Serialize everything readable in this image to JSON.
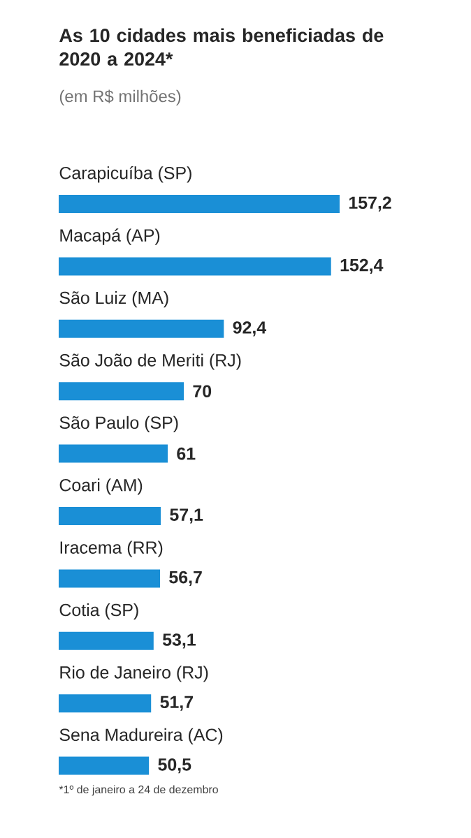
{
  "chart_data": {
    "type": "bar",
    "orientation": "horizontal",
    "title": "As 10 cidades mais beneficiadas de 2020 a 2024*",
    "subtitle": "(em R$ milhões)",
    "categories": [
      "Carapicuíba (SP)",
      "Macapá (AP)",
      "São Luiz (MA)",
      "São João de Meriti (RJ)",
      "São Paulo (SP)",
      "Coari (AM)",
      "Iracema (RR)",
      "Cotia (SP)",
      "Rio de Janeiro (RJ)",
      "Sena Madureira (AC)"
    ],
    "values": [
      157.2,
      152.4,
      92.4,
      70,
      61,
      57.1,
      56.7,
      53.1,
      51.7,
      50.5
    ],
    "value_labels": [
      "157,2",
      "152,4",
      "92,4",
      "70",
      "61",
      "57,1",
      "56,7",
      "53,1",
      "51,7",
      "50,5"
    ],
    "color": "#1a8fd6",
    "data_labels": true,
    "annotations": [
      "*1º de janeiro a 24 de dezembro"
    ]
  }
}
